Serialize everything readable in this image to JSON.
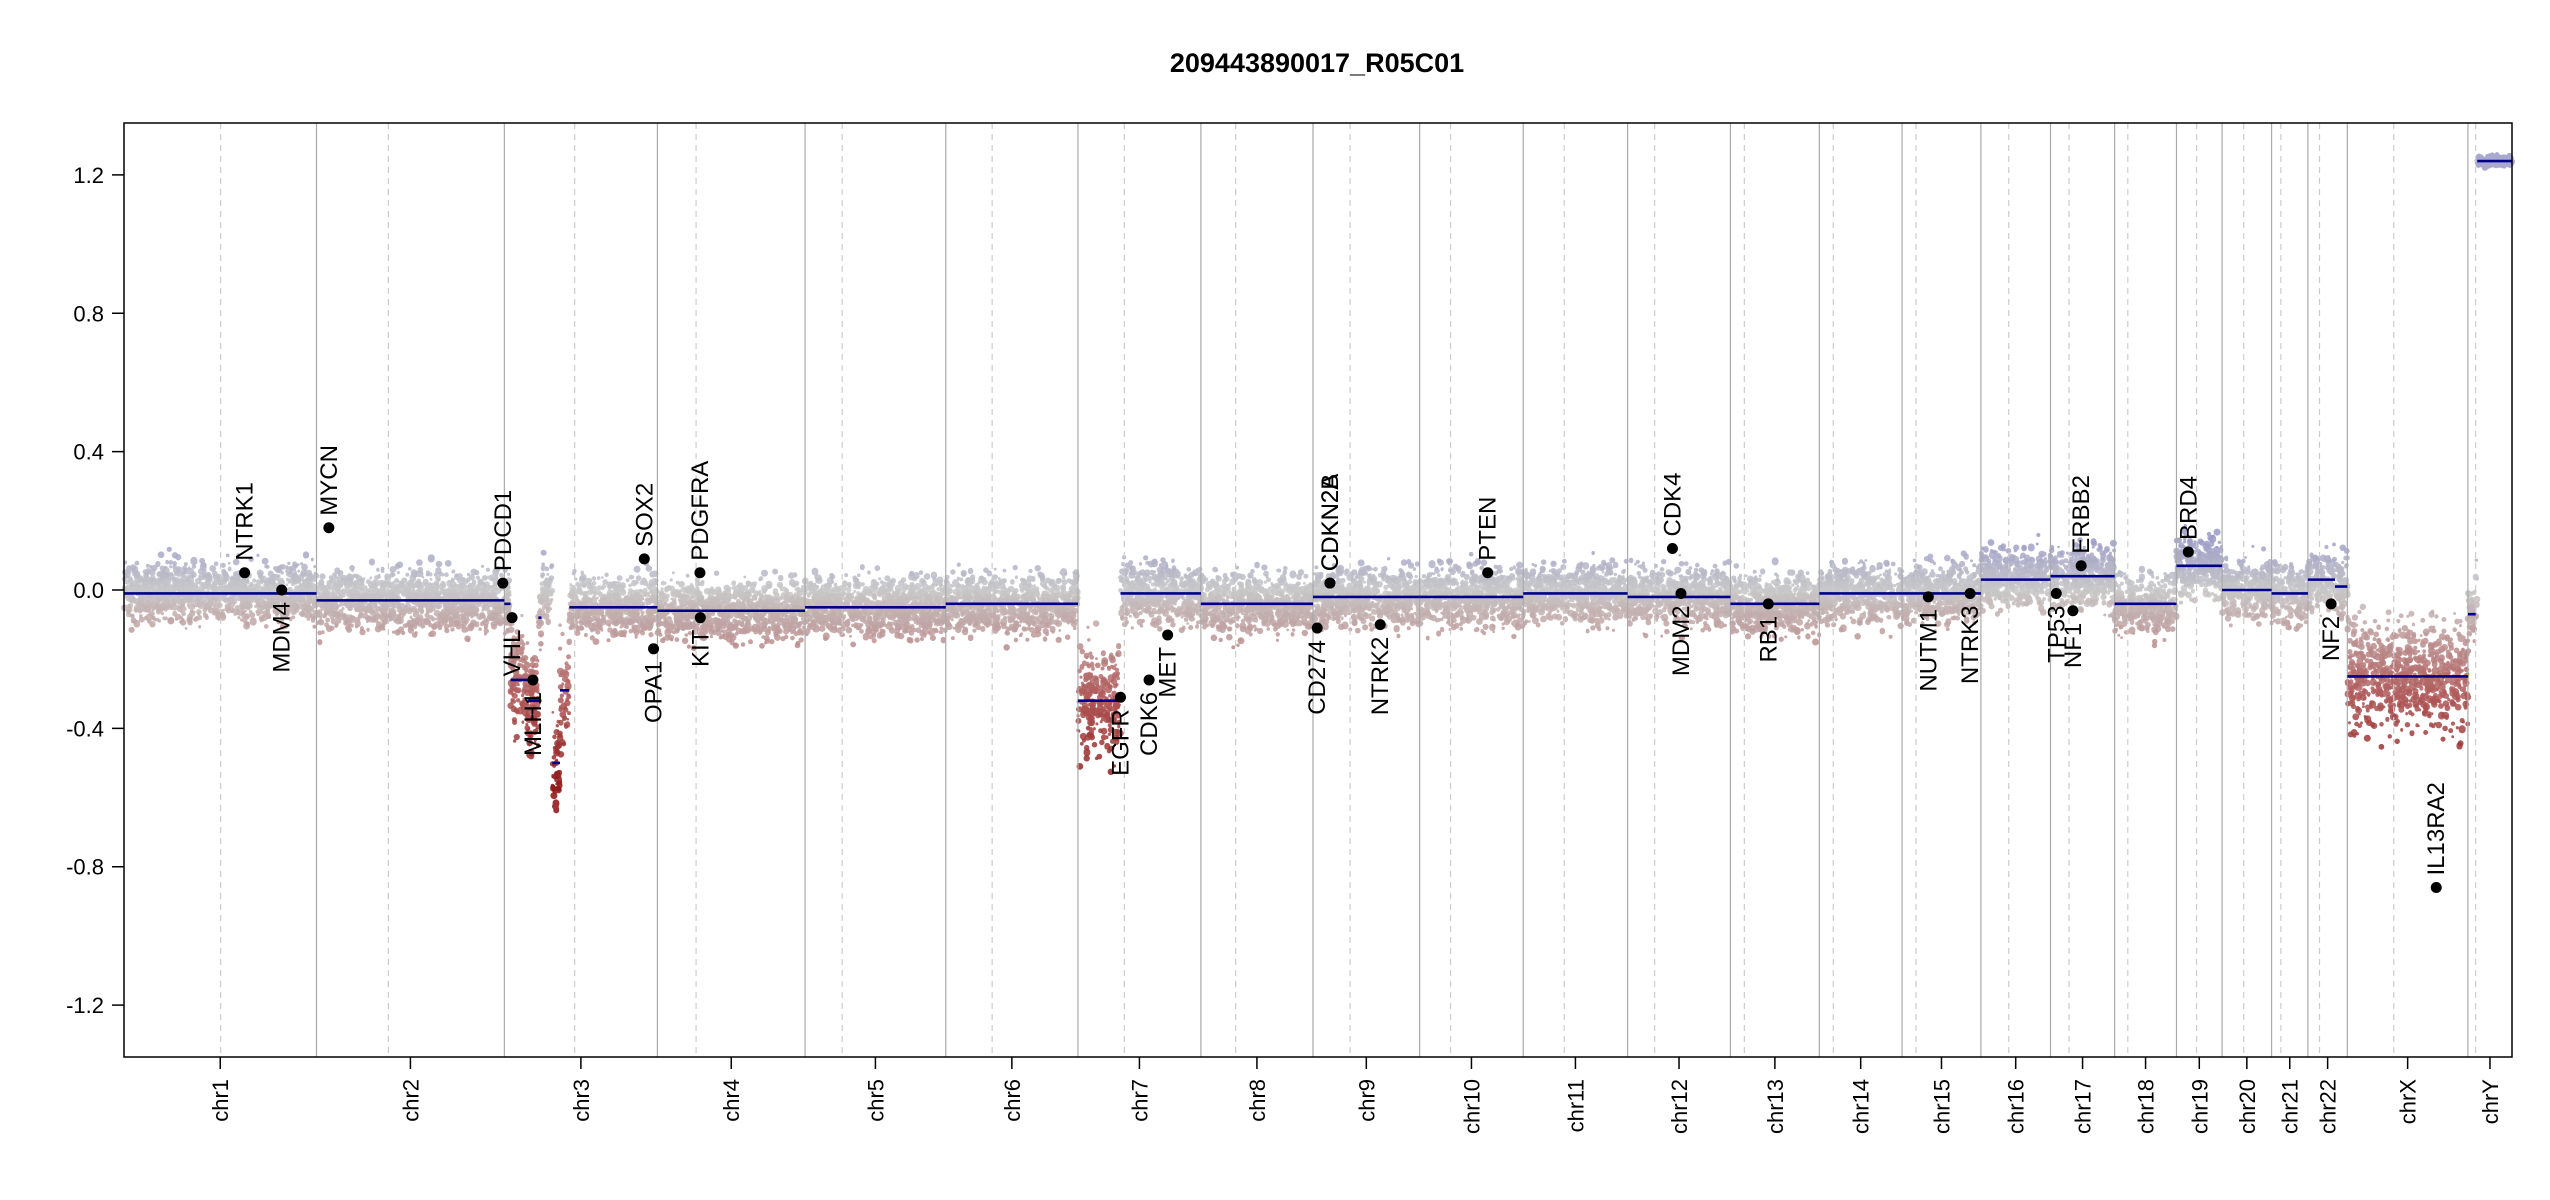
{
  "chart_data": {
    "type": "scatter",
    "title": "209443890017_R05C01",
    "xlabel": "",
    "ylabel": "",
    "ylim": [
      -1.35,
      1.35
    ],
    "yticks": [
      -1.2,
      -0.8,
      -0.4,
      0.0,
      0.4,
      0.8,
      1.2
    ],
    "ytick_labels": [
      "-1.2",
      "-0.8",
      "-0.4",
      "0.0",
      "0.4",
      "0.8",
      "1.2"
    ],
    "grid": false,
    "chromosomes": [
      {
        "name": "chr1",
        "size": 249,
        "cen": 125
      },
      {
        "name": "chr2",
        "size": 243,
        "cen": 93
      },
      {
        "name": "chr3",
        "size": 198,
        "cen": 91
      },
      {
        "name": "chr4",
        "size": 191,
        "cen": 50
      },
      {
        "name": "chr5",
        "size": 182,
        "cen": 48
      },
      {
        "name": "chr6",
        "size": 171,
        "cen": 60
      },
      {
        "name": "chr7",
        "size": 159,
        "cen": 60
      },
      {
        "name": "chr8",
        "size": 145,
        "cen": 45
      },
      {
        "name": "chr9",
        "size": 138,
        "cen": 48
      },
      {
        "name": "chr10",
        "size": 134,
        "cen": 40
      },
      {
        "name": "chr11",
        "size": 135,
        "cen": 53
      },
      {
        "name": "chr12",
        "size": 133,
        "cen": 35
      },
      {
        "name": "chr13",
        "size": 115,
        "cen": 18
      },
      {
        "name": "chr14",
        "size": 107,
        "cen": 18
      },
      {
        "name": "chr15",
        "size": 102,
        "cen": 18
      },
      {
        "name": "chr16",
        "size": 90,
        "cen": 36
      },
      {
        "name": "chr17",
        "size": 83,
        "cen": 24
      },
      {
        "name": "chr18",
        "size": 80,
        "cen": 17
      },
      {
        "name": "chr19",
        "size": 59,
        "cen": 26
      },
      {
        "name": "chr20",
        "size": 64,
        "cen": 28
      },
      {
        "name": "chr21",
        "size": 47,
        "cen": 12
      },
      {
        "name": "chr22",
        "size": 51,
        "cen": 15
      },
      {
        "name": "chrX",
        "size": 156,
        "cen": 60
      },
      {
        "name": "chrY",
        "size": 57,
        "cen": 10
      }
    ],
    "segments": [
      {
        "chr": "chr1",
        "start": 0,
        "end": 249,
        "value": -0.01
      },
      {
        "chr": "chr2",
        "start": 0,
        "end": 243,
        "value": -0.03
      },
      {
        "chr": "chr3",
        "start": 0,
        "end": 8,
        "value": -0.04
      },
      {
        "chr": "chr3",
        "start": 8,
        "end": 30,
        "value": -0.26
      },
      {
        "chr": "chr3",
        "start": 30,
        "end": 48,
        "value": -0.32
      },
      {
        "chr": "chr3",
        "start": 44,
        "end": 48,
        "value": -0.08
      },
      {
        "chr": "chr3",
        "start": 62,
        "end": 72,
        "value": -0.5
      },
      {
        "chr": "chr3",
        "start": 72,
        "end": 84,
        "value": -0.29
      },
      {
        "chr": "chr3",
        "start": 84,
        "end": 198,
        "value": -0.05
      },
      {
        "chr": "chr4",
        "start": 0,
        "end": 191,
        "value": -0.06
      },
      {
        "chr": "chr5",
        "start": 0,
        "end": 182,
        "value": -0.05
      },
      {
        "chr": "chr6",
        "start": 0,
        "end": 171,
        "value": -0.04
      },
      {
        "chr": "chr7",
        "start": 0,
        "end": 55,
        "value": -0.32
      },
      {
        "chr": "chr7",
        "start": 55,
        "end": 159,
        "value": -0.01
      },
      {
        "chr": "chr8",
        "start": 0,
        "end": 145,
        "value": -0.04
      },
      {
        "chr": "chr9",
        "start": 0,
        "end": 138,
        "value": -0.02
      },
      {
        "chr": "chr10",
        "start": 0,
        "end": 134,
        "value": -0.02
      },
      {
        "chr": "chr11",
        "start": 0,
        "end": 135,
        "value": -0.01
      },
      {
        "chr": "chr12",
        "start": 0,
        "end": 133,
        "value": -0.02
      },
      {
        "chr": "chr13",
        "start": 0,
        "end": 115,
        "value": -0.04
      },
      {
        "chr": "chr14",
        "start": 0,
        "end": 107,
        "value": -0.01
      },
      {
        "chr": "chr15",
        "start": 0,
        "end": 102,
        "value": -0.01
      },
      {
        "chr": "chr16",
        "start": 0,
        "end": 90,
        "value": 0.03
      },
      {
        "chr": "chr17",
        "start": 0,
        "end": 83,
        "value": 0.04
      },
      {
        "chr": "chr18",
        "start": 0,
        "end": 80,
        "value": -0.04
      },
      {
        "chr": "chr19",
        "start": 0,
        "end": 59,
        "value": 0.07
      },
      {
        "chr": "chr20",
        "start": 0,
        "end": 64,
        "value": 0.0
      },
      {
        "chr": "chr21",
        "start": 0,
        "end": 47,
        "value": -0.01
      },
      {
        "chr": "chr22",
        "start": 0,
        "end": 35,
        "value": 0.03
      },
      {
        "chr": "chr22",
        "start": 35,
        "end": 51,
        "value": 0.01
      },
      {
        "chr": "chrX",
        "start": 0,
        "end": 156,
        "value": -0.25
      },
      {
        "chr": "chrY",
        "start": 0,
        "end": 10,
        "value": -0.07
      },
      {
        "chr": "chrY",
        "start": 12,
        "end": 57,
        "value": 1.24
      }
    ],
    "genes": [
      {
        "name": "NTRK1",
        "chr": "chr1",
        "pos": 156,
        "value": 0.05,
        "label_side": "above"
      },
      {
        "name": "MDM4",
        "chr": "chr1",
        "pos": 204,
        "value": 0.0,
        "label_side": "below"
      },
      {
        "name": "MYCN",
        "chr": "chr2",
        "pos": 16,
        "value": 0.18,
        "label_side": "above"
      },
      {
        "name": "PDCD1",
        "chr": "chr2",
        "pos": 241,
        "value": 0.02,
        "label_side": "above"
      },
      {
        "name": "VHL",
        "chr": "chr3",
        "pos": 10,
        "value": -0.08,
        "label_side": "below"
      },
      {
        "name": "MLH1",
        "chr": "chr3",
        "pos": 37,
        "value": -0.26,
        "label_side": "below"
      },
      {
        "name": "SOX2",
        "chr": "chr3",
        "pos": 181,
        "value": 0.09,
        "label_side": "above"
      },
      {
        "name": "OPA1",
        "chr": "chr3",
        "pos": 193,
        "value": -0.17,
        "label_side": "below"
      },
      {
        "name": "PDGFRA",
        "chr": "chr4",
        "pos": 55,
        "value": 0.05,
        "label_side": "above"
      },
      {
        "name": "KIT",
        "chr": "chr4",
        "pos": 55.5,
        "value": -0.08,
        "label_side": "below"
      },
      {
        "name": "EGFR",
        "chr": "chr7",
        "pos": 55,
        "value": -0.31,
        "label_side": "below"
      },
      {
        "name": "CDK6",
        "chr": "chr7",
        "pos": 92,
        "value": -0.26,
        "label_side": "below"
      },
      {
        "name": "MET",
        "chr": "chr7",
        "pos": 116,
        "value": -0.13,
        "label_side": "below"
      },
      {
        "name": "CD274",
        "chr": "chr9",
        "pos": 5.5,
        "value": -0.11,
        "label_side": "below"
      },
      {
        "name": "CDKN2A",
        "chr": "chr9",
        "pos": 21.9,
        "value": 0.02,
        "label_side": "above"
      },
      {
        "name": "CDKN2B",
        "chr": "chr9",
        "pos": 22.0,
        "value": 0.02,
        "label_side": "above"
      },
      {
        "name": "NTRK2",
        "chr": "chr9",
        "pos": 87,
        "value": -0.1,
        "label_side": "below"
      },
      {
        "name": "PTEN",
        "chr": "chr10",
        "pos": 88,
        "value": 0.05,
        "label_side": "above"
      },
      {
        "name": "CDK4",
        "chr": "chr12",
        "pos": 58,
        "value": 0.12,
        "label_side": "above"
      },
      {
        "name": "MDM2",
        "chr": "chr12",
        "pos": 69,
        "value": -0.01,
        "label_side": "below"
      },
      {
        "name": "RB1",
        "chr": "chr13",
        "pos": 49,
        "value": -0.04,
        "label_side": "below"
      },
      {
        "name": "NUTM1",
        "chr": "chr15",
        "pos": 34,
        "value": -0.02,
        "label_side": "below"
      },
      {
        "name": "NTRK3",
        "chr": "chr15",
        "pos": 88,
        "value": -0.01,
        "label_side": "below"
      },
      {
        "name": "TP53",
        "chr": "chr17",
        "pos": 7.5,
        "value": -0.01,
        "label_side": "below"
      },
      {
        "name": "NF1",
        "chr": "chr17",
        "pos": 29,
        "value": -0.06,
        "label_side": "below"
      },
      {
        "name": "ERBB2",
        "chr": "chr17",
        "pos": 39.7,
        "value": 0.07,
        "label_side": "above"
      },
      {
        "name": "BRD4",
        "chr": "chr19",
        "pos": 15.3,
        "value": 0.11,
        "label_side": "above"
      },
      {
        "name": "NF2",
        "chr": "chr22",
        "pos": 30,
        "value": -0.04,
        "label_side": "below"
      },
      {
        "name": "IL13RA2",
        "chr": "chrX",
        "pos": 115,
        "value": -0.86,
        "label_side": "above"
      }
    ],
    "colors": {
      "gain": "#9a9ac8",
      "neutral": "#c8c8c8",
      "loss": "#b05a5a",
      "deep_loss": "#8b1010",
      "segment": "#00008b",
      "gene_dot": "#000000",
      "chrom_border": "#aaaaaa",
      "centromere": "#cccccc"
    }
  }
}
